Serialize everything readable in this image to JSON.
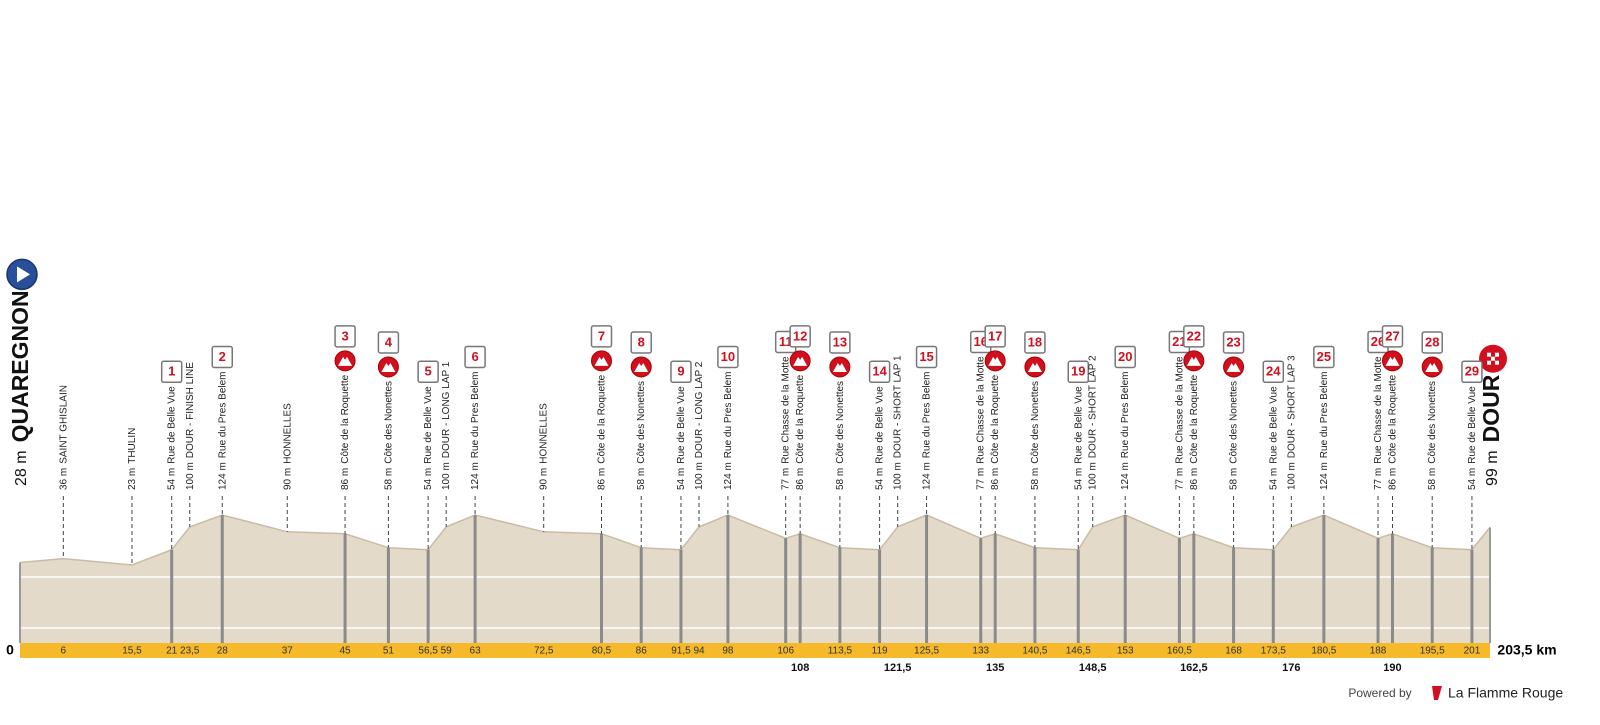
{
  "chart_data": {
    "type": "profile",
    "start": {
      "name": "QUAREGNON",
      "km": 0,
      "elevation": 28,
      "elevation_label": "28 m"
    },
    "finish": {
      "name": "DOUR",
      "km": {
        "value": 203.5,
        "label": "203,5 km"
      },
      "elevation": 99,
      "elevation_label": "99 m"
    },
    "waypoints": [
      {
        "km": 6,
        "elevation": 36,
        "elevation_label": "36 m",
        "name": "SAINT GHISLAIN"
      },
      {
        "km": {
          "value": 15.5,
          "label": "15,5"
        },
        "elevation": 23,
        "elevation_label": "23 m",
        "name": "THULIN"
      },
      {
        "km": 21,
        "elevation": 54,
        "elevation_label": "54 m",
        "name": "Rue de Belle Vue",
        "marker": "1"
      },
      {
        "km": {
          "value": 23.5,
          "label": "23,5"
        },
        "elevation": 100,
        "elevation_label": "100 m",
        "name": "DOUR - FINISH LINE"
      },
      {
        "km": 28,
        "elevation": 124,
        "elevation_label": "124 m",
        "name": "Rue du Pres Belem",
        "marker": "2"
      },
      {
        "km": 37,
        "elevation": 90,
        "elevation_label": "90 m",
        "name": "HONNELLES"
      },
      {
        "km": 45,
        "elevation": 86,
        "elevation_label": "86 m",
        "name": "Côte de la Roquette",
        "marker": "3",
        "climb": true
      },
      {
        "km": 51,
        "elevation": 58,
        "elevation_label": "58 m",
        "name": "Côte des Nonettes",
        "marker": "4",
        "climb": true
      },
      {
        "km": {
          "value": 56.5,
          "label": "56,5"
        },
        "elevation": 54,
        "elevation_label": "54 m",
        "name": "Rue de Belle Vue",
        "marker": "5"
      },
      {
        "km": 59,
        "elevation": 100,
        "elevation_label": "100 m",
        "name": "DOUR - LONG LAP 1"
      },
      {
        "km": 63,
        "elevation": 124,
        "elevation_label": "124 m",
        "name": "Rue du Pres Belem",
        "marker": "6"
      },
      {
        "km": {
          "value": 72.5,
          "label": "72,5"
        },
        "elevation": 90,
        "elevation_label": "90 m",
        "name": "HONNELLES"
      },
      {
        "km": {
          "value": 80.5,
          "label": "80,5"
        },
        "elevation": 86,
        "elevation_label": "86 m",
        "name": "Côte de la Roquette",
        "marker": "7",
        "climb": true
      },
      {
        "km": 86,
        "elevation": 58,
        "elevation_label": "58 m",
        "name": "Côte des Nonettes",
        "marker": "8",
        "climb": true
      },
      {
        "km": {
          "value": 91.5,
          "label": "91,5"
        },
        "elevation": 54,
        "elevation_label": "54 m",
        "name": "Rue de Belle Vue",
        "marker": "9"
      },
      {
        "km": 94,
        "elevation": 100,
        "elevation_label": "100 m",
        "name": "DOUR - LONG LAP 2"
      },
      {
        "km": 98,
        "elevation": 124,
        "elevation_label": "124 m",
        "name": "Rue du Pres Belem",
        "marker": "10"
      },
      {
        "km": 106,
        "elevation": 77,
        "elevation_label": "77 m",
        "name": "Rue Chasse de la Motte",
        "marker": "11"
      },
      {
        "km": 108,
        "elevation": 86,
        "elevation_label": "86 m",
        "name": "Côte de la Roquette",
        "marker": "12",
        "climb": true
      },
      {
        "km": {
          "value": 113.5,
          "label": "113,5"
        },
        "elevation": 58,
        "elevation_label": "58 m",
        "name": "Côte des Nonettes",
        "marker": "13",
        "climb": true
      },
      {
        "km": 119,
        "elevation": 54,
        "elevation_label": "54 m",
        "name": "Rue de Belle Vue",
        "marker": "14"
      },
      {
        "km": {
          "value": 121.5,
          "label": "121,5"
        },
        "elevation": 100,
        "elevation_label": "100 m",
        "name": "DOUR - SHORT LAP 1"
      },
      {
        "km": {
          "value": 125.5,
          "label": "125,5"
        },
        "elevation": 124,
        "elevation_label": "124 m",
        "name": "Rue du Pres Belem",
        "marker": "15"
      },
      {
        "km": 133,
        "elevation": 77,
        "elevation_label": "77 m",
        "name": "Rue Chasse de la Motte",
        "marker": "16"
      },
      {
        "km": 135,
        "elevation": 86,
        "elevation_label": "86 m",
        "name": "Côte de la Roquette",
        "marker": "17",
        "climb": true
      },
      {
        "km": {
          "value": 140.5,
          "label": "140,5"
        },
        "elevation": 58,
        "elevation_label": "58 m",
        "name": "Côte des Nonettes",
        "marker": "18",
        "climb": true
      },
      {
        "km": {
          "value": 146.5,
          "label": "146,5"
        },
        "elevation": 54,
        "elevation_label": "54 m",
        "name": "Rue de Belle Vue",
        "marker": "19"
      },
      {
        "km": {
          "value": 148.5,
          "label": "148,5"
        },
        "elevation": 100,
        "elevation_label": "100 m",
        "name": "DOUR - SHORT LAP 2"
      },
      {
        "km": 153,
        "elevation": 124,
        "elevation_label": "124 m",
        "name": "Rue du Pres Belem",
        "marker": "20"
      },
      {
        "km": {
          "value": 160.5,
          "label": "160,5"
        },
        "elevation": 77,
        "elevation_label": "77 m",
        "name": "Rue Chasse de la Motte",
        "marker": "21"
      },
      {
        "km": {
          "value": 162.5,
          "label": "162,5"
        },
        "elevation": 86,
        "elevation_label": "86 m",
        "name": "Côte de la Roquette",
        "marker": "22",
        "climb": true
      },
      {
        "km": 168,
        "elevation": 58,
        "elevation_label": "58 m",
        "name": "Côte des Nonettes",
        "marker": "23",
        "climb": true
      },
      {
        "km": {
          "value": 173.5,
          "label": "173,5"
        },
        "elevation": 54,
        "elevation_label": "54 m",
        "name": "Rue de Belle Vue",
        "marker": "24"
      },
      {
        "km": 176,
        "elevation": 100,
        "elevation_label": "100 m",
        "name": "DOUR - SHORT LAP 3"
      },
      {
        "km": {
          "value": 180.5,
          "label": "180,5"
        },
        "elevation": 124,
        "elevation_label": "124 m",
        "name": "Rue du Pres Belem",
        "marker": "25"
      },
      {
        "km": 188,
        "elevation": 77,
        "elevation_label": "77 m",
        "name": "Rue Chasse de la Motte",
        "marker": "26"
      },
      {
        "km": 190,
        "elevation": 86,
        "elevation_label": "86 m",
        "name": "Côte de la Roquette",
        "marker": "27",
        "climb": true
      },
      {
        "km": {
          "value": 195.5,
          "label": "195,5"
        },
        "elevation": 58,
        "elevation_label": "58 m",
        "name": "Côte des Nonettes",
        "marker": "28",
        "climb": true
      },
      {
        "km": 201,
        "elevation": 54,
        "elevation_label": "54 m",
        "name": "Rue de Belle Vue",
        "marker": "29"
      }
    ]
  },
  "footer": {
    "powered_by": "Powered by",
    "brand": "La Flamme Rouge"
  }
}
